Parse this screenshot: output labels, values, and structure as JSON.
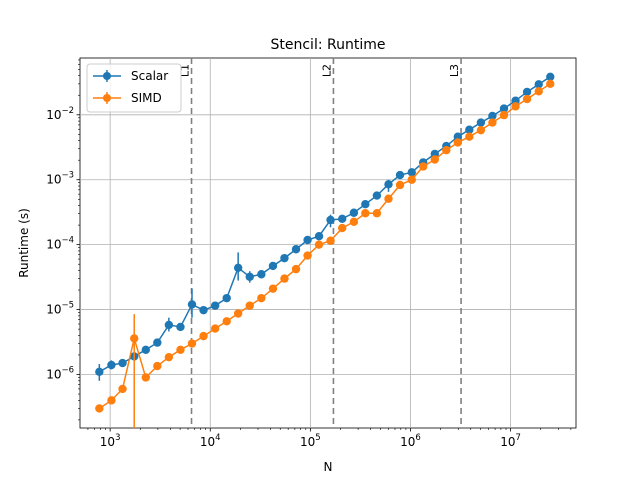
{
  "chart_data": {
    "type": "line",
    "title": "Stencil: Runtime",
    "xlabel": "N",
    "ylabel": "Runtime (s)",
    "xscale": "log",
    "yscale": "log",
    "xlim": [
      500,
      45000000
    ],
    "ylim": [
      1.5e-07,
      0.075
    ],
    "grid": true,
    "legend_position": "top-left",
    "x_ticks": [
      {
        "value": 1000,
        "base": "10",
        "exp": "3"
      },
      {
        "value": 10000,
        "base": "10",
        "exp": "4"
      },
      {
        "value": 100000,
        "base": "10",
        "exp": "5"
      },
      {
        "value": 1000000,
        "base": "10",
        "exp": "6"
      },
      {
        "value": 10000000,
        "base": "10",
        "exp": "7"
      }
    ],
    "y_ticks": [
      {
        "value": 1e-06,
        "base": "10",
        "exp": "−6"
      },
      {
        "value": 1e-05,
        "base": "10",
        "exp": "−5"
      },
      {
        "value": 0.0001,
        "base": "10",
        "exp": "−4"
      },
      {
        "value": 0.001,
        "base": "10",
        "exp": "−3"
      },
      {
        "value": 0.01,
        "base": "10",
        "exp": "−2"
      }
    ],
    "vlines": [
      {
        "label": "L1",
        "x": 6500
      },
      {
        "label": "L2",
        "x": 170000
      },
      {
        "label": "L3",
        "x": 3200000
      }
    ],
    "x": [
      780,
      1030,
      1330,
      1740,
      2270,
      2960,
      3860,
      5040,
      6570,
      8570,
      11200,
      14600,
      19000,
      24800,
      32400,
      42300,
      55100,
      71900,
      93800,
      122000,
      159000,
      208000,
      272000,
      354000,
      462000,
      603000,
      786000,
      1030000,
      1340000,
      1750000,
      2280000,
      2970000,
      3870000,
      5050000,
      6580000,
      8590000,
      11200000,
      14600000,
      19100000,
      24900000
    ],
    "series": [
      {
        "name": "Scalar",
        "color": "#1f77b4",
        "values": [
          1.1e-06,
          1.4e-06,
          1.5e-06,
          1.9e-06,
          2.4e-06,
          3.1e-06,
          5.8e-06,
          5.4e-06,
          1.2e-05,
          9.8e-06,
          1.15e-05,
          1.5e-05,
          4.4e-05,
          3.2e-05,
          3.5e-05,
          4.7e-05,
          6.2e-05,
          8.5e-05,
          0.000118,
          0.000135,
          0.00024,
          0.00025,
          0.00031,
          0.00042,
          0.00057,
          0.00085,
          0.00118,
          0.0013,
          0.00185,
          0.0025,
          0.0033,
          0.0046,
          0.0059,
          0.0076,
          0.0096,
          0.0125,
          0.0165,
          0.0225,
          0.0295,
          0.0385
        ],
        "err_low": [
          8e-07,
          1.2e-06,
          1.45e-06,
          1.75e-06,
          2.3e-06,
          2.95e-06,
          4.6e-06,
          5e-06,
          7.5e-06,
          8.8e-06,
          1.1e-05,
          1.42e-05,
          2.8e-05,
          2.6e-05,
          3.3e-05,
          4.5e-05,
          6e-05,
          8.2e-05,
          0.000113,
          0.00013,
          0.000185,
          0.00024,
          0.000295,
          0.0004,
          0.00055,
          0.00065,
          0.00112,
          0.00125,
          0.00178,
          0.0024,
          0.0032,
          0.0044,
          0.0057,
          0.0073,
          0.0093,
          0.012,
          0.0158,
          0.0215,
          0.0285,
          0.037
        ],
        "err_high": [
          1.45e-06,
          1.65e-06,
          1.55e-06,
          2.1e-06,
          2.5e-06,
          3.25e-06,
          7.5e-06,
          5.8e-06,
          2.1e-05,
          1.1e-05,
          1.2e-05,
          1.58e-05,
          7.6e-05,
          3.9e-05,
          3.7e-05,
          4.9e-05,
          6.4e-05,
          8.8e-05,
          0.000123,
          0.00014,
          0.00029,
          0.00026,
          0.000325,
          0.00044,
          0.00059,
          0.001,
          0.00125,
          0.00135,
          0.00192,
          0.0026,
          0.0034,
          0.0048,
          0.0061,
          0.0079,
          0.0099,
          0.013,
          0.0172,
          0.0235,
          0.0305,
          0.04
        ]
      },
      {
        "name": "SIMD",
        "color": "#ff7f0e",
        "values": [
          3e-07,
          4e-07,
          6e-07,
          3.6e-06,
          9e-07,
          1.35e-06,
          1.85e-06,
          2.4e-06,
          3e-06,
          3.9e-06,
          5.1e-06,
          6.6e-06,
          8.7e-06,
          1.15e-05,
          1.5e-05,
          2.1e-05,
          3e-05,
          4.2e-05,
          6.8e-05,
          0.0001,
          0.000115,
          0.00018,
          0.000225,
          0.000305,
          0.000305,
          0.00051,
          0.00083,
          0.001,
          0.0016,
          0.00205,
          0.00285,
          0.00375,
          0.0046,
          0.0058,
          0.0076,
          0.0099,
          0.0135,
          0.0175,
          0.023,
          0.03
        ],
        "err_low": [
          2.9e-07,
          3.9e-07,
          5.9e-07,
          1.5e-07,
          8.8e-07,
          1.33e-06,
          1.82e-06,
          2.37e-06,
          2.97e-06,
          3.86e-06,
          5.05e-06,
          6.55e-06,
          8.6e-06,
          1.14e-05,
          1.48e-05,
          2.08e-05,
          2.97e-05,
          4.15e-05,
          6.7e-05,
          9.9e-05,
          0.000113,
          0.000162,
          0.00022,
          0.0003,
          0.0003,
          0.0005,
          0.00081,
          0.00098,
          0.00157,
          0.002,
          0.0028,
          0.0037,
          0.0045,
          0.0057,
          0.0075,
          0.0097,
          0.0132,
          0.0172,
          0.0226,
          0.0295
        ],
        "err_high": [
          3.1e-07,
          4.1e-07,
          6.1e-07,
          8.5e-06,
          9.2e-07,
          1.37e-06,
          1.88e-06,
          2.43e-06,
          3.03e-06,
          3.94e-06,
          5.15e-06,
          6.65e-06,
          8.8e-06,
          1.16e-05,
          1.52e-05,
          2.12e-05,
          3.03e-05,
          4.25e-05,
          6.9e-05,
          0.000101,
          0.000117,
          0.000198,
          0.00023,
          0.00031,
          0.00031,
          0.00052,
          0.00085,
          0.00102,
          0.00163,
          0.0021,
          0.0029,
          0.0038,
          0.0047,
          0.0059,
          0.0077,
          0.0101,
          0.0138,
          0.0178,
          0.0234,
          0.0305
        ]
      }
    ]
  }
}
